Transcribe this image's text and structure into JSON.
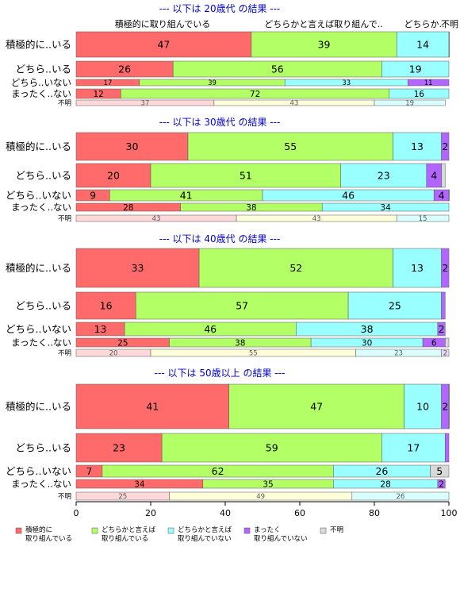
{
  "chart_data": {
    "type": "bar",
    "stacked": true,
    "orientation": "horizontal",
    "xlim": [
      0,
      100
    ],
    "x_ticks": [
      0,
      20,
      40,
      60,
      80,
      100
    ],
    "top_headers": [
      "積極的に取り組んでいる",
      "どちらかと言えば取り組んで..",
      "どちらか..",
      "不明"
    ],
    "legend": [
      {
        "label": "積極的に\n取り組んでいる",
        "color": "#ff6b6b"
      },
      {
        "label": "どちらかと言えば\n取り組んでいる",
        "color": "#b3ff66"
      },
      {
        "label": "どちらかと言えば\n取り組んでいない",
        "color": "#99ffff"
      },
      {
        "label": "まったく\n取り組んでいない",
        "color": "#b266ff"
      },
      {
        "label": "不明",
        "color": "#d9d9d9"
      }
    ],
    "colors": [
      "#ff6b6b",
      "#b3ff66",
      "#99ffff",
      "#b266ff",
      "#d9d9d9"
    ],
    "unknown_colors": [
      "#ffd9d9",
      "#ffffd9",
      "#d9ffff",
      "#ead9ff",
      "#eeeeee"
    ],
    "panels": [
      {
        "title": "--- 以下は 20歳代 の結果 ---",
        "rows": [
          {
            "label": "積極的に..いる",
            "values": [
              47,
              39,
              14,
              0.5,
              0
            ]
          },
          {
            "label": "どちら..いる",
            "values": [
              26,
              56,
              19,
              0,
              0
            ]
          },
          {
            "label": "どちら..いない",
            "values": [
              17,
              39,
              33,
              11,
              0
            ]
          },
          {
            "label": "まったく..ない",
            "values": [
              12,
              72,
              16,
              0,
              0
            ]
          },
          {
            "label": "不明",
            "values": [
              37,
              43,
              19,
              0,
              0
            ]
          }
        ]
      },
      {
        "title": "--- 以下は 30歳代 の結果 ---",
        "rows": [
          {
            "label": "積極的に..いる",
            "values": [
              30,
              55,
              13,
              2,
              0
            ]
          },
          {
            "label": "どちら..いる",
            "values": [
              20,
              51,
              23,
              4,
              1
            ]
          },
          {
            "label": "どちら..いない",
            "values": [
              9,
              41,
              46,
              4,
              1
            ]
          },
          {
            "label": "まったく..ない",
            "values": [
              28,
              38,
              34,
              0,
              0
            ]
          },
          {
            "label": "不明",
            "values": [
              43,
              43,
              15,
              0,
              0
            ]
          }
        ]
      },
      {
        "title": "--- 以下は 40歳代 の結果 ---",
        "rows": [
          {
            "label": "積極的に..いる",
            "values": [
              33,
              52,
              13,
              2,
              0
            ]
          },
          {
            "label": "どちら..いる",
            "values": [
              16,
              57,
              25,
              1,
              0
            ]
          },
          {
            "label": "どちら..いない",
            "values": [
              13,
              46,
              38,
              2,
              0
            ]
          },
          {
            "label": "まったく..ない",
            "values": [
              25,
              38,
              30,
              6,
              1
            ]
          },
          {
            "label": "不明",
            "values": [
              20,
              55,
              23,
              2,
              0
            ]
          }
        ]
      },
      {
        "title": "--- 以下は 50歳以上 の結果 ---",
        "rows": [
          {
            "label": "積極的に..いる",
            "values": [
              41,
              47,
              10,
              2,
              1
            ]
          },
          {
            "label": "どちら..いる",
            "values": [
              23,
              59,
              17,
              1,
              0
            ]
          },
          {
            "label": "どちら..いない",
            "values": [
              7,
              62,
              26,
              0,
              5
            ]
          },
          {
            "label": "まったく..ない",
            "values": [
              34,
              35,
              28,
              2,
              0
            ]
          },
          {
            "label": "不明",
            "values": [
              25,
              49,
              26,
              0,
              0
            ]
          }
        ]
      }
    ]
  }
}
